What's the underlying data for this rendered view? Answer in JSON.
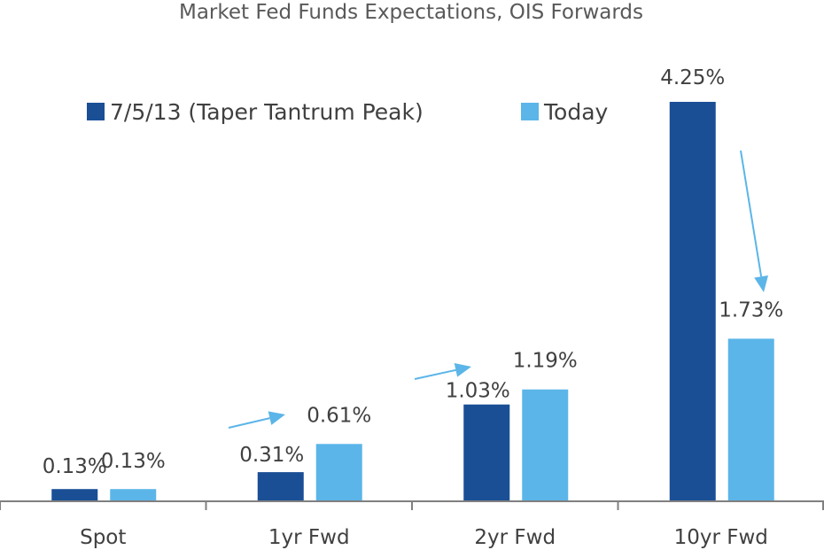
{
  "chart_data": {
    "type": "bar",
    "title": "Market Fed Funds Expectations, OIS Forwards",
    "xlabel": "",
    "ylabel": "",
    "categories": [
      "Spot",
      "1yr Fwd",
      "2yr Fwd",
      "10yr Fwd"
    ],
    "series": [
      {
        "name": "7/5/13 (Taper Tantrum Peak)",
        "values": [
          0.13,
          0.31,
          1.03,
          4.25
        ],
        "labels": [
          "0.13%",
          "0.31%",
          "1.03%",
          "4.25%"
        ],
        "color": "#1a4f96"
      },
      {
        "name": "Today",
        "values": [
          0.13,
          0.61,
          1.19,
          1.73
        ],
        "labels": [
          "0.13%",
          "0.61%",
          "1.19%",
          "1.73%"
        ],
        "color": "#5bb5e8"
      }
    ],
    "ylim": [
      0,
      4.25
    ],
    "grid": false,
    "legend_position": "top-left",
    "arrow_color": "#5bb5e8",
    "axis_color": "#808080"
  }
}
